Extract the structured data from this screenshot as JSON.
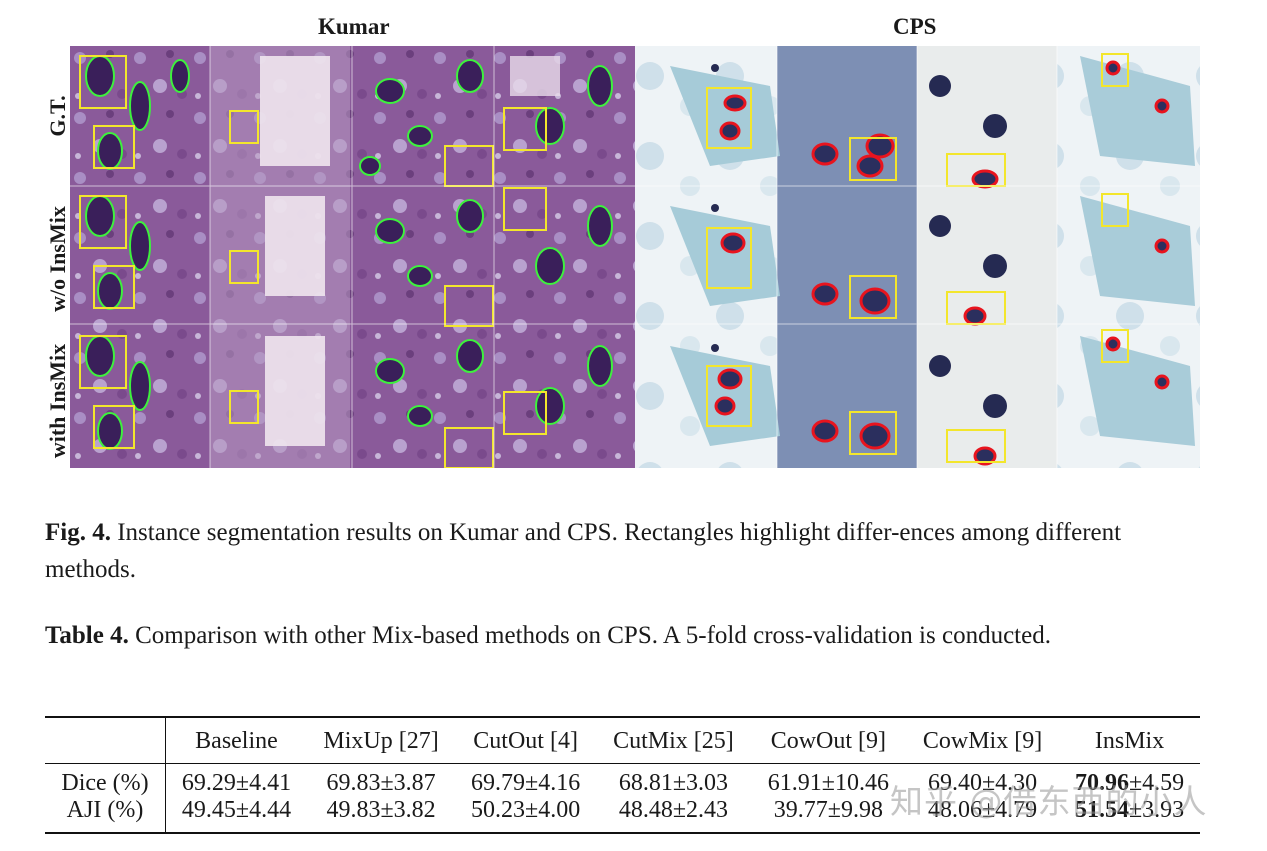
{
  "figure": {
    "headers": {
      "kumar": "Kumar",
      "cps": "CPS"
    },
    "row_labels": [
      "G.T.",
      "w/o InsMix",
      "with InsMix"
    ],
    "contour_colors": {
      "kumar": "#3df23d",
      "cps": "#e8141e",
      "highlight_box": "#f3e62c"
    },
    "panel_images": [
      "kumar-tile-1",
      "kumar-tile-2",
      "kumar-tile-3",
      "kumar-tile-4",
      "cps-tile-1",
      "cps-tile-2",
      "cps-tile-3",
      "cps-tile-4"
    ]
  },
  "fig_caption": {
    "label": "Fig. 4.",
    "text": "Instance segmentation results on Kumar and CPS. Rectangles highlight differ-ences among different methods."
  },
  "table_caption": {
    "label": "Table 4.",
    "text": "Comparison with other Mix-based methods on CPS. A 5-fold cross-validation is conducted."
  },
  "table": {
    "columns": [
      "Baseline",
      "MixUp [27]",
      "CutOut [4]",
      "CutMix [25]",
      "CowOut [9]",
      "CowMix [9]",
      "InsMix"
    ],
    "rows": [
      {
        "label": "Dice (%)",
        "cells": [
          "69.29±4.41",
          "69.83±3.87",
          "69.79±4.16",
          "68.81±3.03",
          "61.91±10.46",
          "69.40±4.30"
        ],
        "best_bold": "70.96",
        "best_rest": "±4.59"
      },
      {
        "label": "AJI (%)",
        "cells": [
          "49.45±4.44",
          "49.83±3.82",
          "50.23±4.00",
          "48.48±2.43",
          "39.77±9.98",
          "48.06±4.79"
        ],
        "best_bold": "51.54",
        "best_rest": "±3.93"
      }
    ]
  },
  "watermark": "知乎 @借东西的小人"
}
